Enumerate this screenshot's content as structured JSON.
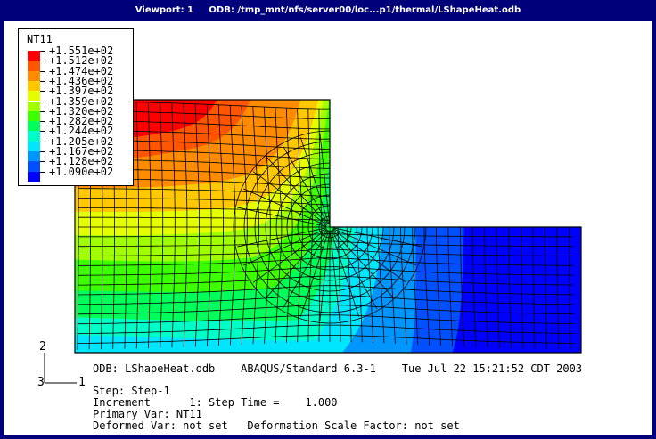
{
  "window": {
    "title": "Viewport: 1     ODB: /tmp_mnt/nfs/server00/loc...p1/thermal/LShapeHeat.odb"
  },
  "legend": {
    "title": "NT11",
    "labels": [
      "+1.551e+02",
      "+1.512e+02",
      "+1.474e+02",
      "+1.436e+02",
      "+1.397e+02",
      "+1.359e+02",
      "+1.320e+02",
      "+1.282e+02",
      "+1.244e+02",
      "+1.205e+02",
      "+1.167e+02",
      "+1.128e+02",
      "+1.090e+02"
    ],
    "colors": [
      "#ff0000",
      "#ff5500",
      "#ff8c00",
      "#ffc800",
      "#e6ff00",
      "#a0ff00",
      "#3cff00",
      "#00ff5a",
      "#00ffc8",
      "#00e6ff",
      "#0096ff",
      "#0050ff",
      "#0000ff"
    ]
  },
  "triad": {
    "x_label": "1",
    "y_label": "2",
    "z_label": "3"
  },
  "info": {
    "line1": "ODB: LShapeHeat.odb    ABAQUS/Standard 6.3-1    Tue Jul 22 15:21:52 CDT 2003",
    "line2": "Step: Step-1",
    "line3": "Increment      1: Step Time =    1.000",
    "line4": "Primary Var: NT11",
    "line5": "Deformed Var: not set   Deformation Scale Factor: not set"
  }
}
